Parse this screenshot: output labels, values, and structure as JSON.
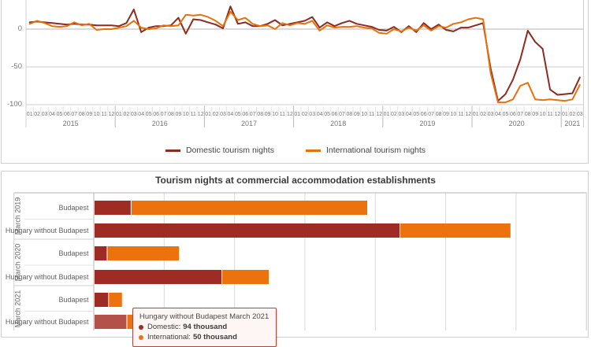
{
  "chart_data": [
    {
      "type": "line",
      "title": "",
      "xlabel": "",
      "ylabel": "",
      "y_tick_labels": [
        "0",
        "-50",
        "-100"
      ],
      "y_tick_values": [
        0,
        -50,
        -100
      ],
      "ylim": [
        -103,
        38
      ],
      "grid": true,
      "legend_position": "bottom",
      "x_years": [
        {
          "label": "2015",
          "months": [
            "01",
            "02",
            "03",
            "04",
            "05",
            "06",
            "07",
            "08",
            "09",
            "10",
            "11",
            "12"
          ]
        },
        {
          "label": "2016",
          "months": [
            "01",
            "02",
            "03",
            "04",
            "05",
            "06",
            "07",
            "08",
            "09",
            "10",
            "11",
            "12"
          ]
        },
        {
          "label": "2017",
          "months": [
            "01",
            "02",
            "03",
            "04",
            "05",
            "06",
            "07",
            "08",
            "09",
            "10",
            "11",
            "12"
          ]
        },
        {
          "label": "2018",
          "months": [
            "01",
            "02",
            "03",
            "04",
            "05",
            "06",
            "07",
            "08",
            "09",
            "10",
            "11",
            "12"
          ]
        },
        {
          "label": "2019",
          "months": [
            "01",
            "02",
            "03",
            "04",
            "05",
            "06",
            "07",
            "08",
            "09",
            "10",
            "11",
            "12"
          ]
        },
        {
          "label": "2020",
          "months": [
            "01",
            "02",
            "03",
            "04",
            "05",
            "06",
            "07",
            "08",
            "09",
            "10",
            "11",
            "12"
          ]
        },
        {
          "label": "2021",
          "months": [
            "01",
            "02",
            "03"
          ]
        }
      ],
      "series": [
        {
          "name": "Domestic tourism nights",
          "color": "#8f2a21",
          "values": [
            9,
            10,
            9,
            8,
            7,
            6,
            7,
            6,
            6,
            5,
            5,
            5,
            4,
            8,
            26,
            -4,
            2,
            4,
            4,
            5,
            15,
            -6,
            13,
            12,
            9,
            6,
            1,
            30,
            7,
            9,
            4,
            4,
            7,
            12,
            5,
            7,
            9,
            11,
            16,
            2,
            9,
            4,
            8,
            11,
            7,
            5,
            3,
            -1,
            -2,
            3,
            -4,
            4,
            -4,
            8,
            0,
            6,
            -1,
            -3,
            2,
            2,
            5,
            8,
            -52,
            -95,
            -86,
            -67,
            -40,
            -2,
            -17,
            -26,
            -80,
            -87,
            -86,
            -85,
            -64
          ]
        },
        {
          "name": "International tourism nights",
          "color": "#e8710a",
          "values": [
            7,
            11,
            8,
            4,
            3,
            4,
            9,
            5,
            7,
            -1,
            0,
            0,
            2,
            4,
            11,
            2,
            0,
            1,
            5,
            4,
            5,
            19,
            18,
            19,
            16,
            11,
            4,
            23,
            12,
            15,
            7,
            4,
            5,
            0,
            8,
            5,
            8,
            7,
            11,
            -2,
            5,
            2,
            3,
            3,
            4,
            2,
            1,
            -5,
            -6,
            0,
            -3,
            2,
            -2,
            5,
            -2,
            4,
            2,
            7,
            9,
            13,
            15,
            13,
            -58,
            -97,
            -97,
            -93,
            -75,
            -71,
            -93,
            -94,
            -93,
            -94,
            -95,
            -93,
            -74
          ]
        }
      ]
    },
    {
      "type": "bar",
      "orientation": "horizontal",
      "title": "Tourism nights at commercial accommodation establishments",
      "unit": "thousand",
      "xlim": [
        0,
        1400
      ],
      "gridline_step": 200,
      "series_colors": {
        "domestic": "#9e2b24",
        "international": "#ec720e",
        "domestic_highlight": "#b3524a"
      },
      "groups": [
        {
          "label": "March 2019",
          "rows": [
            {
              "label": "Budapest",
              "domestic": 106,
              "international": 670
            },
            {
              "label": "Hungary without Budapest",
              "domestic": 870,
              "international": 313
            }
          ]
        },
        {
          "label": "March 2020",
          "rows": [
            {
              "label": "Budapest",
              "domestic": 38,
              "international": 203
            },
            {
              "label": "Hungary without Budapest",
              "domestic": 364,
              "international": 132
            }
          ]
        },
        {
          "label": "March 2021",
          "rows": [
            {
              "label": "Budapest",
              "domestic": 42,
              "international": 37
            },
            {
              "label": "Hungary without Budapest",
              "domestic": 94,
              "international": 50,
              "highlighted": true
            }
          ]
        }
      ],
      "tooltip": {
        "title": "Hungary without Budapest March 2021",
        "rows": [
          {
            "label": "Domestic:",
            "value": "94 thousand",
            "color": "#9e2b24"
          },
          {
            "label": "International:",
            "value": "50 thousand",
            "color": "#ec720e"
          }
        ]
      }
    }
  ]
}
